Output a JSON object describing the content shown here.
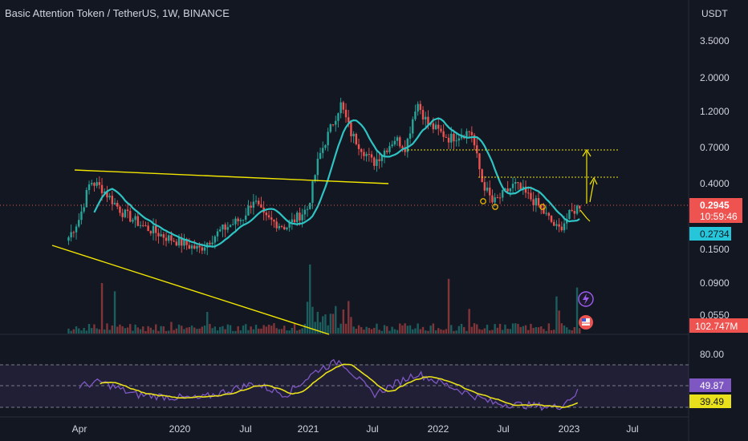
{
  "header": {
    "title": "Basic Attention Token / TetherUS, 1W, BINANCE"
  },
  "price_axis": {
    "unit": "USDT",
    "ticks": [
      "3.5000",
      "2.0000",
      "1.2000",
      "0.7000",
      "0.4000",
      "0.1500",
      "0.0900",
      "0.0550"
    ],
    "last_price": "0.2945",
    "countdown": "10:59:46",
    "ma_value": "0.2734",
    "volume_label": "102.747M"
  },
  "rsi_axis": {
    "ticks": [
      "80.00"
    ],
    "rsi_value": "49.87",
    "rsi_ma_value": "39.49"
  },
  "time_axis": {
    "labels": [
      "Apr",
      "2020",
      "Jul",
      "2021",
      "Jul",
      "2022",
      "Jul",
      "2023",
      "Jul"
    ]
  },
  "colors": {
    "background": "#131722",
    "up": "#26a69a",
    "down": "#ef5350",
    "ma": "#2ec4c4",
    "trendline": "#f2e600",
    "rsi": "#7e57c2",
    "rsi_ma": "#e8e01a",
    "price_line": "#ef5350",
    "grid": "#2a2e39"
  },
  "icons": [
    "lightning-icon",
    "flag-icon"
  ],
  "chart_data": {
    "type": "candlestick",
    "title": "Basic Attention Token / TetherUS, 1W, BINANCE",
    "scale": "log",
    "x_range": [
      "2019-03",
      "2023-08"
    ],
    "y_range_usdt": [
      0.05,
      4.0
    ],
    "last_price": 0.2945,
    "moving_average_last": 0.2734,
    "volume_last": "102.747M",
    "approx_price_path": [
      {
        "date": "2019-03",
        "price": 0.18
      },
      {
        "date": "2019-04",
        "price": 0.24
      },
      {
        "date": "2019-05",
        "price": 0.42
      },
      {
        "date": "2019-06",
        "price": 0.38
      },
      {
        "date": "2019-08",
        "price": 0.26
      },
      {
        "date": "2019-10",
        "price": 0.21
      },
      {
        "date": "2019-12",
        "price": 0.18
      },
      {
        "date": "2020-03",
        "price": 0.15
      },
      {
        "date": "2020-05",
        "price": 0.2
      },
      {
        "date": "2020-07",
        "price": 0.24
      },
      {
        "date": "2020-08",
        "price": 0.32
      },
      {
        "date": "2020-09",
        "price": 0.24
      },
      {
        "date": "2020-11",
        "price": 0.21
      },
      {
        "date": "2021-01",
        "price": 0.28
      },
      {
        "date": "2021-02",
        "price": 0.6
      },
      {
        "date": "2021-04",
        "price": 1.35
      },
      {
        "date": "2021-05",
        "price": 0.85
      },
      {
        "date": "2021-07",
        "price": 0.55
      },
      {
        "date": "2021-09",
        "price": 0.8
      },
      {
        "date": "2021-10",
        "price": 0.7
      },
      {
        "date": "2021-11",
        "price": 1.4
      },
      {
        "date": "2021-12",
        "price": 1.0
      },
      {
        "date": "2022-02",
        "price": 0.8
      },
      {
        "date": "2022-04",
        "price": 0.9
      },
      {
        "date": "2022-05",
        "price": 0.42
      },
      {
        "date": "2022-06",
        "price": 0.3
      },
      {
        "date": "2022-08",
        "price": 0.4
      },
      {
        "date": "2022-10",
        "price": 0.3
      },
      {
        "date": "2022-12",
        "price": 0.2
      },
      {
        "date": "2023-01",
        "price": 0.25
      },
      {
        "date": "2023-02",
        "price": 0.2945
      }
    ],
    "rsi": {
      "last": 49.87,
      "ma_last": 39.49,
      "approx_path": [
        {
          "date": "2019-04",
          "rsi": 55
        },
        {
          "date": "2019-06",
          "rsi": 60
        },
        {
          "date": "2019-09",
          "rsi": 45
        },
        {
          "date": "2020-03",
          "rsi": 40
        },
        {
          "date": "2020-08",
          "rsi": 58
        },
        {
          "date": "2020-11",
          "rsi": 45
        },
        {
          "date": "2021-02",
          "rsi": 75
        },
        {
          "date": "2021-04",
          "rsi": 85
        },
        {
          "date": "2021-07",
          "rsi": 45
        },
        {
          "date": "2021-11",
          "rsi": 70
        },
        {
          "date": "2022-03",
          "rsi": 50
        },
        {
          "date": "2022-06",
          "rsi": 35
        },
        {
          "date": "2022-12",
          "rsi": 30
        },
        {
          "date": "2023-02",
          "rsi": 49.87
        }
      ]
    }
  }
}
